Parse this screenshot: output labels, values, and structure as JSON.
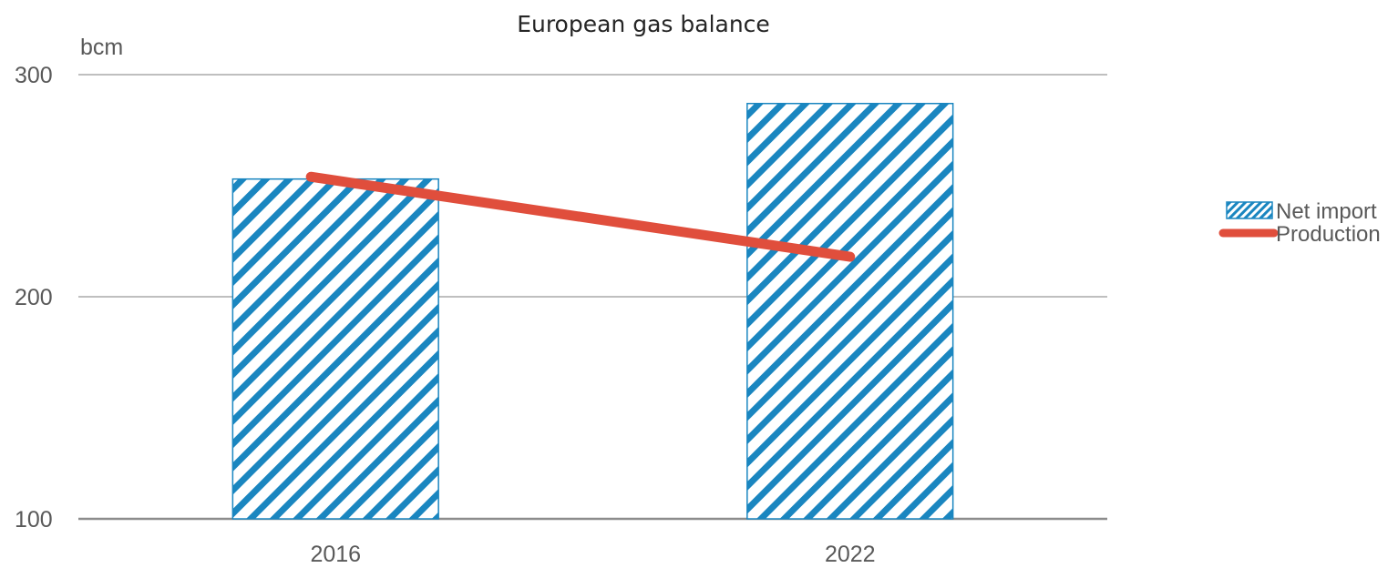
{
  "chart_data": {
    "type": "bar",
    "title": "European gas balance",
    "ylabel": "bcm",
    "xlabel": "",
    "categories": [
      "2016",
      "2022"
    ],
    "ylim": [
      100,
      300
    ],
    "yticks": [
      100,
      200,
      300
    ],
    "grid": true,
    "legend_position": "right",
    "series": [
      {
        "name": "Net import",
        "kind": "bar",
        "pattern": "diagonal-stripes",
        "color": "#1A86C0",
        "values": [
          253,
          287
        ]
      },
      {
        "name": "Production",
        "kind": "line",
        "color": "#E04E3C",
        "values": [
          254,
          218
        ]
      }
    ]
  }
}
